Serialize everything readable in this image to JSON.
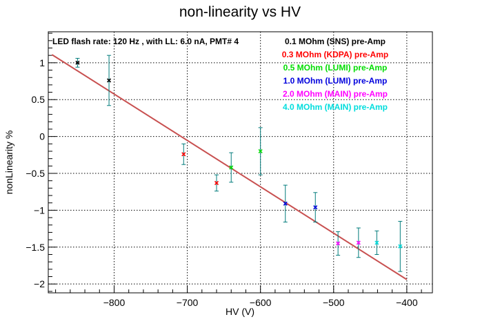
{
  "chart_data": {
    "type": "scatter",
    "title": "non-linearity vs HV",
    "xlabel": "HV (V)",
    "ylabel": "nonLinearity %",
    "xlim": [
      -890,
      -365
    ],
    "ylim": [
      -2.12,
      1.42
    ],
    "xticks": [
      -800,
      -700,
      -600,
      -500,
      -400
    ],
    "xtick_labels": [
      "−800",
      "−700",
      "−600",
      "−500",
      "−400"
    ],
    "yticks": [
      1,
      0.5,
      0,
      -0.5,
      -1,
      -1.5,
      -2
    ],
    "ytick_labels": [
      "1",
      "0.5",
      "0",
      "−0.5",
      "−1",
      "−1.5",
      "−2"
    ],
    "grid": true,
    "annotation": "LED flash rate: 120 Hz , with LL: 6.0 nA, PMT# 4",
    "legend_position": "top-right",
    "fit_line": {
      "color": "#c85050",
      "x": [
        -885,
        -400
      ],
      "y": [
        1.11,
        -1.94
      ]
    },
    "error_bar_color": "#007b7b",
    "series": [
      {
        "name": "0.1 MOhm (SNS) pre-Amp",
        "color": "#000000",
        "points": [
          {
            "x": -850,
            "y": 1.0,
            "err": 0.06
          },
          {
            "x": -807,
            "y": 0.76,
            "err": 0.34
          }
        ]
      },
      {
        "name": "0.3 MOhm (KDPA) pre-Amp",
        "color": "#ff0000",
        "points": [
          {
            "x": -705,
            "y": -0.24,
            "err": 0.14
          },
          {
            "x": -660,
            "y": -0.63,
            "err": 0.11
          }
        ]
      },
      {
        "name": "0.5 MOhm (LUMI) pre-Amp",
        "color": "#00dd00",
        "points": [
          {
            "x": -640,
            "y": -0.42,
            "err": 0.2
          },
          {
            "x": -600,
            "y": -0.2,
            "err": 0.32
          }
        ]
      },
      {
        "name": "1.0 MOhm (LUMI) pre-Amp",
        "color": "#0000dd",
        "points": [
          {
            "x": -566,
            "y": -0.91,
            "err": 0.25
          },
          {
            "x": -525,
            "y": -0.96,
            "err": 0.2
          }
        ]
      },
      {
        "name": "2.0 MOhm (MAIN) pre-Amp",
        "color": "#ff00ff",
        "points": [
          {
            "x": -494,
            "y": -1.45,
            "err": 0.16
          },
          {
            "x": -466,
            "y": -1.44,
            "err": 0.2
          }
        ]
      },
      {
        "name": "4.0 MOhm (MAIN) pre-Amp",
        "color": "#00dddd",
        "points": [
          {
            "x": -441,
            "y": -1.44,
            "err": 0.16
          },
          {
            "x": -409,
            "y": -1.49,
            "err": 0.34
          }
        ]
      }
    ]
  }
}
